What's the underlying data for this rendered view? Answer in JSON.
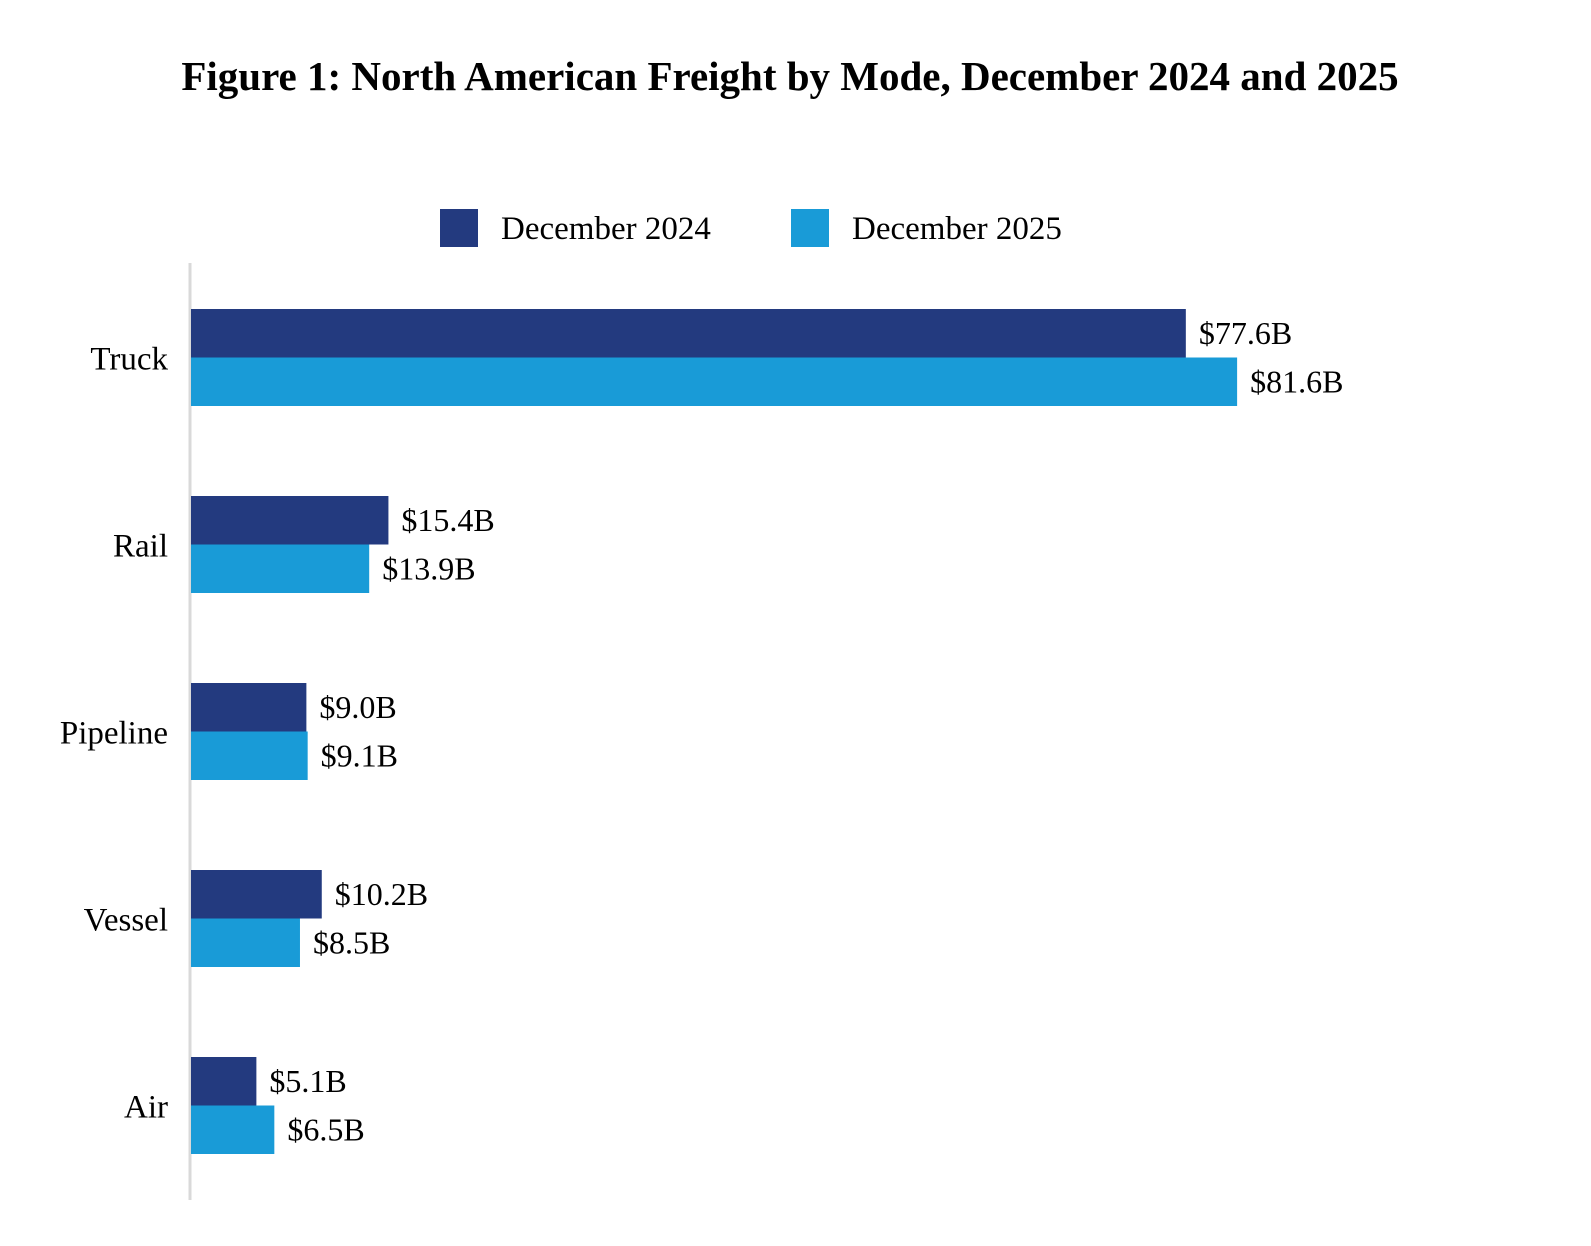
{
  "chart_data": {
    "type": "bar",
    "orientation": "horizontal",
    "title": "Figure 1: North American Freight by Mode, December 2024 and 2025",
    "categories": [
      "Truck",
      "Rail",
      "Pipeline",
      "Vessel",
      "Air"
    ],
    "series": [
      {
        "name": "December 2024",
        "color": "#233a7f",
        "values": [
          77.6,
          15.4,
          9.0,
          10.2,
          5.1
        ],
        "labels": [
          "$77.6B",
          "$15.4B",
          "$9.0B",
          "$10.2B",
          "$5.1B"
        ]
      },
      {
        "name": "December 2025",
        "color": "#199bd7",
        "values": [
          81.6,
          13.9,
          9.1,
          8.5,
          6.5
        ],
        "labels": [
          "$81.6B",
          "$13.9B",
          "$9.1B",
          "$8.5B",
          "$6.5B"
        ]
      }
    ],
    "unit": "billion USD",
    "legend_position": "top",
    "grid": false,
    "value_axis_visible": false
  }
}
